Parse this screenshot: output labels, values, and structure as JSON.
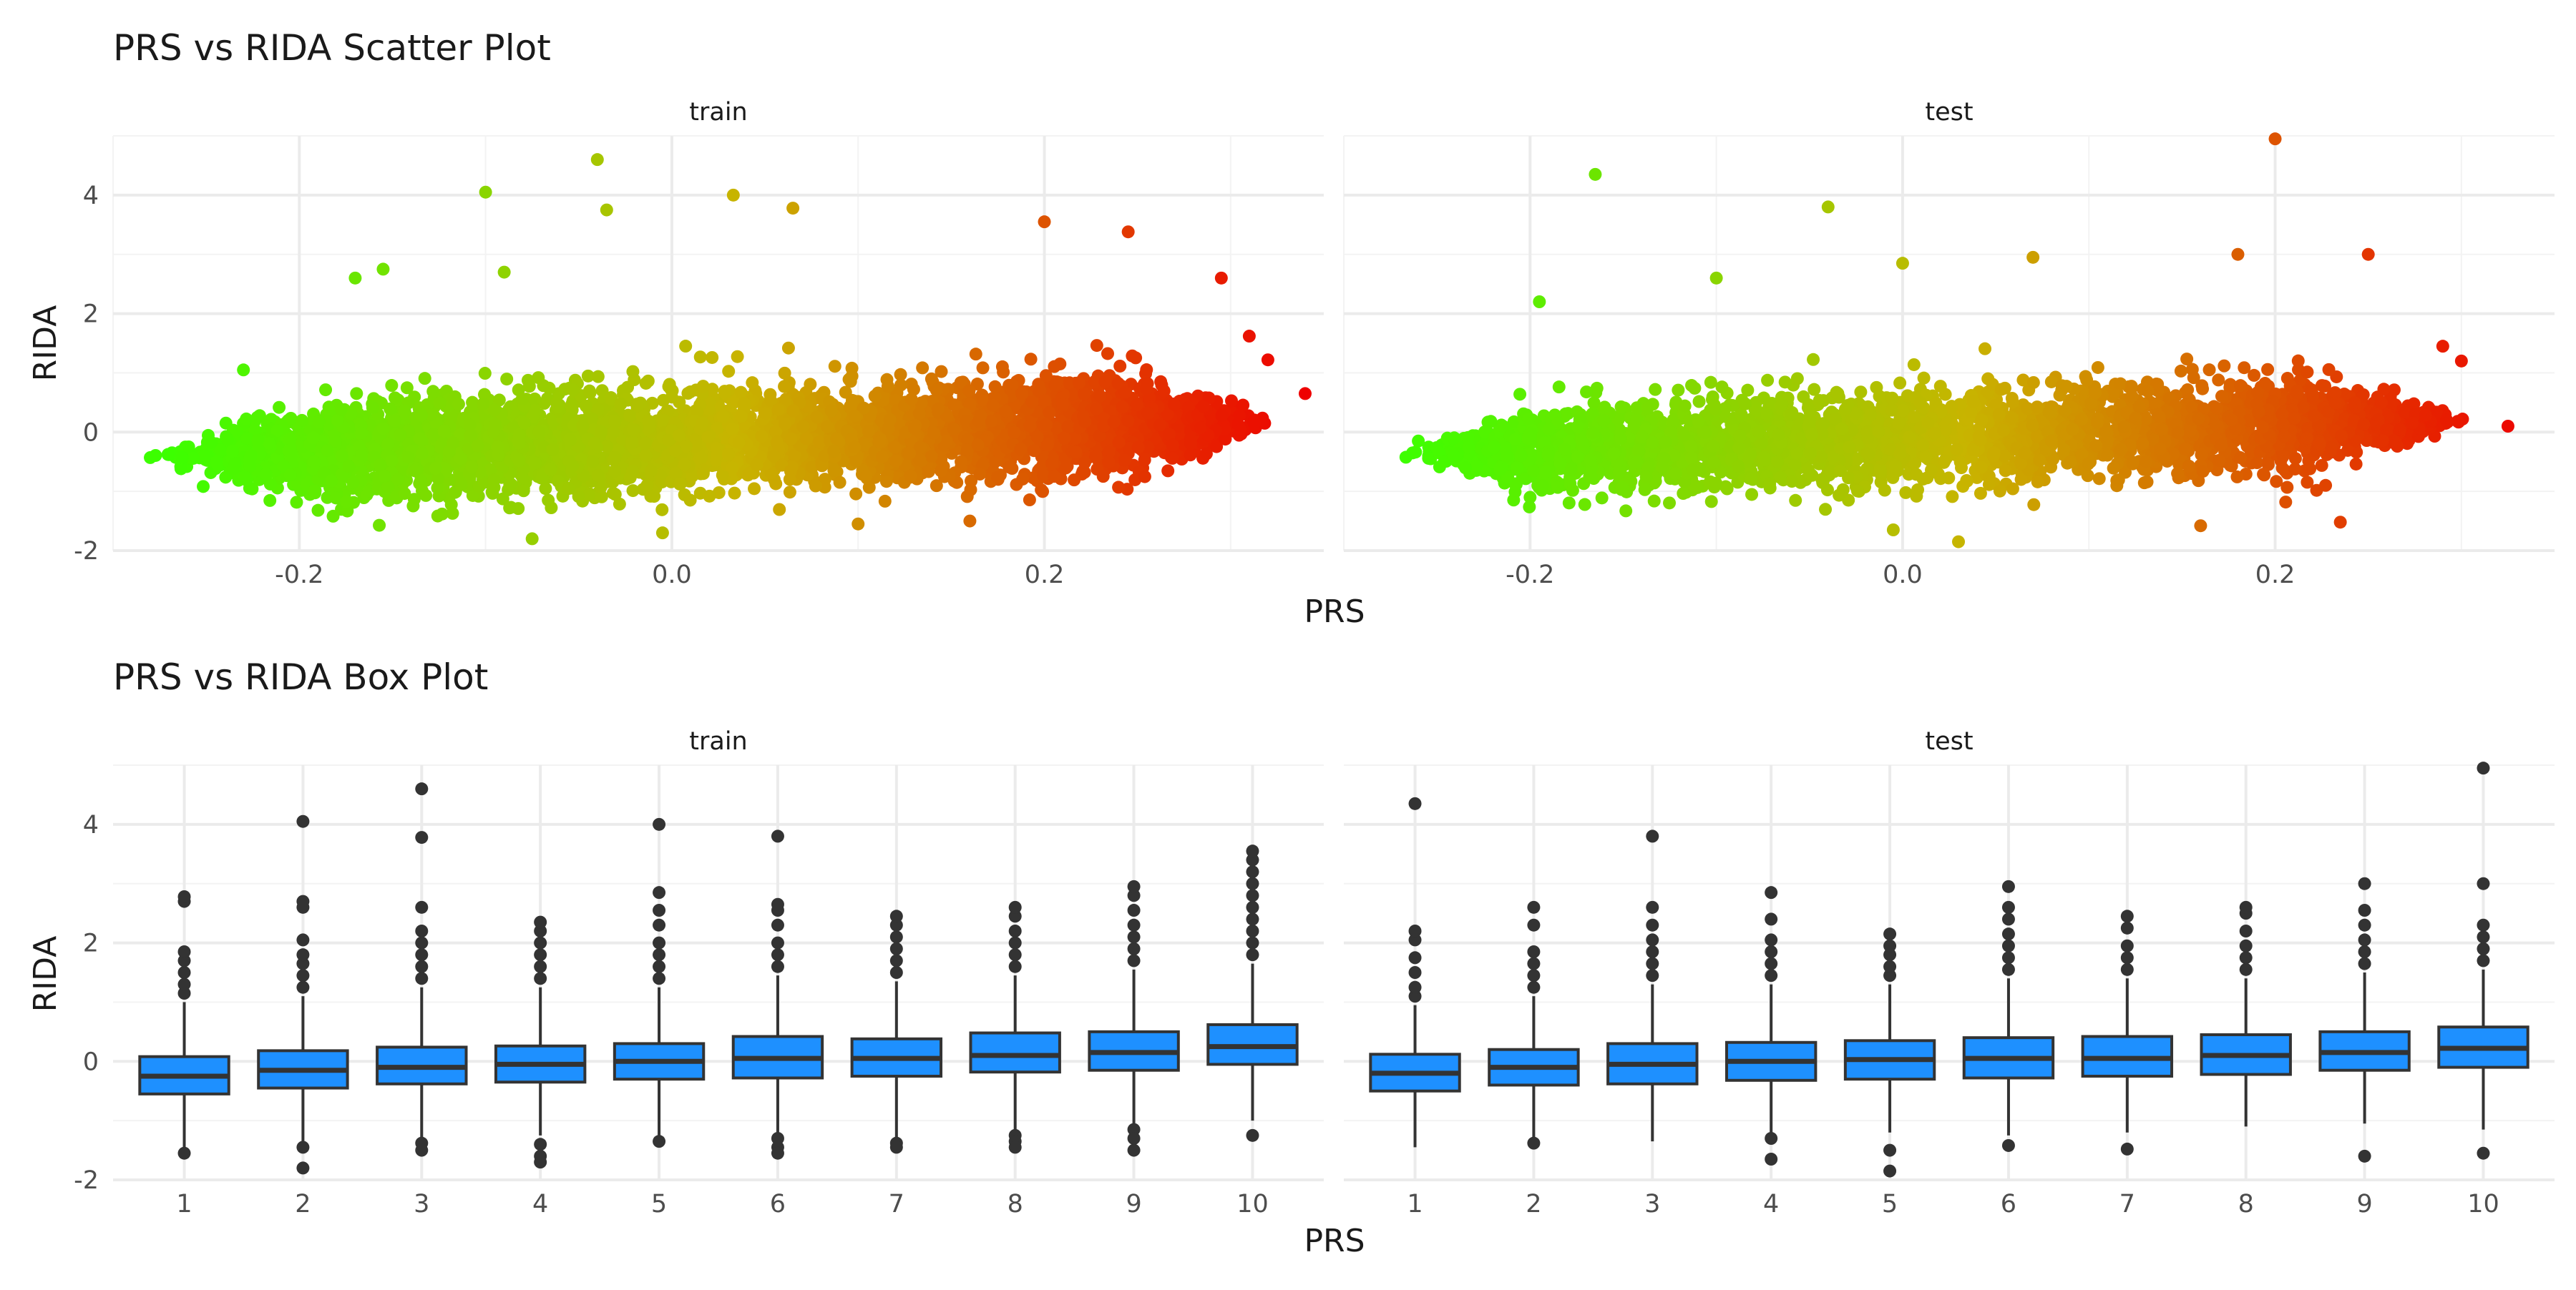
{
  "chart_data": [
    {
      "type": "scatter",
      "title": "PRS vs RIDA Scatter Plot",
      "xlabel": "PRS",
      "ylabel": "RIDA",
      "facets": [
        "train",
        "test"
      ],
      "xlim": [
        -0.3,
        0.35
      ],
      "ylim": [
        -2.0,
        5.0
      ],
      "x_ticks": [
        "-0.2",
        "0.0",
        "0.2"
      ],
      "y_ticks": [
        "-2",
        "0",
        "2",
        "4"
      ],
      "color_scale": {
        "low": "#3cff00",
        "mid": "#c8b400",
        "high": "#ee0000",
        "mapped_to": "PRS"
      },
      "grid": true,
      "series": [
        {
          "name": "train",
          "outliers": [
            {
              "x": -0.27,
              "y": -0.38
            },
            {
              "x": -0.23,
              "y": 1.05
            },
            {
              "x": -0.17,
              "y": 2.6
            },
            {
              "x": -0.155,
              "y": 2.75
            },
            {
              "x": -0.1,
              "y": 4.05
            },
            {
              "x": -0.09,
              "y": 2.7
            },
            {
              "x": -0.04,
              "y": 4.6
            },
            {
              "x": -0.035,
              "y": 3.75
            },
            {
              "x": 0.033,
              "y": 4.0
            },
            {
              "x": 0.065,
              "y": 3.78
            },
            {
              "x": 0.2,
              "y": 3.55
            },
            {
              "x": 0.245,
              "y": 3.38
            },
            {
              "x": 0.295,
              "y": 2.6
            },
            {
              "x": 0.31,
              "y": 1.62
            },
            {
              "x": 0.32,
              "y": 1.22
            },
            {
              "x": 0.34,
              "y": 0.65
            },
            {
              "x": -0.075,
              "y": -1.8
            },
            {
              "x": -0.005,
              "y": -1.7
            },
            {
              "x": 0.1,
              "y": -1.55
            },
            {
              "x": 0.16,
              "y": -1.5
            }
          ],
          "cloud": {
            "x_range": [
              -0.25,
              0.3
            ],
            "y_center_at_min_x": -0.4,
            "y_center_at_max_x": 0.2,
            "y_spread": 0.75
          }
        },
        {
          "name": "test",
          "outliers": [
            {
              "x": -0.26,
              "y": -0.15
            },
            {
              "x": -0.165,
              "y": 4.35
            },
            {
              "x": -0.195,
              "y": 2.2
            },
            {
              "x": -0.1,
              "y": 2.6
            },
            {
              "x": -0.04,
              "y": 3.8
            },
            {
              "x": 0.0,
              "y": 2.85
            },
            {
              "x": 0.07,
              "y": 2.95
            },
            {
              "x": 0.18,
              "y": 3.0
            },
            {
              "x": 0.2,
              "y": 4.95
            },
            {
              "x": 0.25,
              "y": 3.0
            },
            {
              "x": 0.29,
              "y": 1.45
            },
            {
              "x": 0.3,
              "y": 1.2
            },
            {
              "x": 0.325,
              "y": 0.1
            },
            {
              "x": -0.005,
              "y": -1.65
            },
            {
              "x": 0.03,
              "y": -1.85
            },
            {
              "x": 0.16,
              "y": -1.58
            },
            {
              "x": 0.235,
              "y": -1.52
            },
            {
              "x": -0.2,
              "y": -1.1
            }
          ],
          "cloud": {
            "x_range": [
              -0.24,
              0.28
            ],
            "y_center_at_min_x": -0.35,
            "y_center_at_max_x": 0.2,
            "y_spread": 0.7
          }
        }
      ]
    },
    {
      "type": "box",
      "title": "PRS vs RIDA Box Plot",
      "xlabel": "PRS",
      "ylabel": "RIDA",
      "facets": [
        "train",
        "test"
      ],
      "categories": [
        "1",
        "2",
        "3",
        "4",
        "5",
        "6",
        "7",
        "8",
        "9",
        "10"
      ],
      "ylim": [
        -2.0,
        5.0
      ],
      "y_ticks": [
        "-2",
        "0",
        "2",
        "4"
      ],
      "box_color": "#1e90ff",
      "grid": true,
      "series": [
        {
          "name": "train",
          "boxes": [
            {
              "q1": -0.55,
              "median": -0.25,
              "q3": 0.08,
              "lo": -1.5,
              "hi": 1.0,
              "out_high": [
                1.15,
                1.3,
                1.5,
                1.7,
                1.85,
                2.7,
                2.78
              ],
              "out_low": [
                -1.55
              ]
            },
            {
              "q1": -0.45,
              "median": -0.15,
              "q3": 0.18,
              "lo": -1.35,
              "hi": 1.1,
              "out_high": [
                1.25,
                1.45,
                1.65,
                1.8,
                2.05,
                2.6,
                2.7,
                4.05
              ],
              "out_low": [
                -1.45,
                -1.8
              ]
            },
            {
              "q1": -0.38,
              "median": -0.1,
              "q3": 0.24,
              "lo": -1.3,
              "hi": 1.25,
              "out_high": [
                1.4,
                1.6,
                1.8,
                2.0,
                2.2,
                2.6,
                3.78,
                4.6
              ],
              "out_low": [
                -1.38,
                -1.5
              ]
            },
            {
              "q1": -0.35,
              "median": -0.05,
              "q3": 0.26,
              "lo": -1.25,
              "hi": 1.25,
              "out_high": [
                1.4,
                1.6,
                1.8,
                2.0,
                2.2,
                2.35
              ],
              "out_low": [
                -1.4,
                -1.6,
                -1.7
              ]
            },
            {
              "q1": -0.3,
              "median": 0.0,
              "q3": 0.3,
              "lo": -1.25,
              "hi": 1.25,
              "out_high": [
                1.4,
                1.6,
                1.8,
                2.0,
                2.3,
                2.55,
                2.85,
                4.0
              ],
              "out_low": [
                -1.35
              ]
            },
            {
              "q1": -0.28,
              "median": 0.05,
              "q3": 0.42,
              "lo": -1.2,
              "hi": 1.45,
              "out_high": [
                1.6,
                1.8,
                2.0,
                2.3,
                2.55,
                2.65,
                3.8
              ],
              "out_low": [
                -1.3,
                -1.45,
                -1.55
              ]
            },
            {
              "q1": -0.25,
              "median": 0.05,
              "q3": 0.38,
              "lo": -1.3,
              "hi": 1.35,
              "out_high": [
                1.5,
                1.7,
                1.9,
                2.1,
                2.3,
                2.45
              ],
              "out_low": [
                -1.38,
                -1.45
              ]
            },
            {
              "q1": -0.18,
              "median": 0.1,
              "q3": 0.48,
              "lo": -1.15,
              "hi": 1.45,
              "out_high": [
                1.6,
                1.8,
                2.0,
                2.2,
                2.45,
                2.6
              ],
              "out_low": [
                -1.25,
                -1.35,
                -1.45
              ]
            },
            {
              "q1": -0.15,
              "median": 0.15,
              "q3": 0.5,
              "lo": -1.05,
              "hi": 1.55,
              "out_high": [
                1.7,
                1.9,
                2.1,
                2.3,
                2.55,
                2.8,
                2.95
              ],
              "out_low": [
                -1.15,
                -1.3,
                -1.5
              ]
            },
            {
              "q1": -0.05,
              "median": 0.25,
              "q3": 0.62,
              "lo": -1.0,
              "hi": 1.65,
              "out_high": [
                1.8,
                2.0,
                2.2,
                2.4,
                2.6,
                2.8,
                3.0,
                3.2,
                3.4,
                3.55
              ],
              "out_low": [
                -1.25
              ]
            }
          ]
        },
        {
          "name": "test",
          "boxes": [
            {
              "q1": -0.5,
              "median": -0.2,
              "q3": 0.12,
              "lo": -1.45,
              "hi": 0.95,
              "out_high": [
                1.1,
                1.25,
                1.5,
                1.75,
                2.05,
                2.2,
                4.35
              ],
              "out_low": []
            },
            {
              "q1": -0.4,
              "median": -0.1,
              "q3": 0.2,
              "lo": -1.3,
              "hi": 1.1,
              "out_high": [
                1.25,
                1.45,
                1.65,
                1.85,
                2.3,
                2.6
              ],
              "out_low": [
                -1.38
              ]
            },
            {
              "q1": -0.38,
              "median": -0.05,
              "q3": 0.3,
              "lo": -1.35,
              "hi": 1.3,
              "out_high": [
                1.45,
                1.65,
                1.85,
                2.05,
                2.3,
                2.6,
                3.8
              ],
              "out_low": []
            },
            {
              "q1": -0.32,
              "median": 0.0,
              "q3": 0.32,
              "lo": -1.2,
              "hi": 1.3,
              "out_high": [
                1.45,
                1.65,
                1.85,
                2.05,
                2.4,
                2.85
              ],
              "out_low": [
                -1.3,
                -1.65
              ]
            },
            {
              "q1": -0.3,
              "median": 0.03,
              "q3": 0.35,
              "lo": -1.2,
              "hi": 1.3,
              "out_high": [
                1.45,
                1.6,
                1.8,
                1.95,
                2.15
              ],
              "out_low": [
                -1.5,
                -1.85
              ]
            },
            {
              "q1": -0.28,
              "median": 0.05,
              "q3": 0.4,
              "lo": -1.25,
              "hi": 1.4,
              "out_high": [
                1.55,
                1.75,
                1.95,
                2.15,
                2.4,
                2.6,
                2.95
              ],
              "out_low": [
                -1.42
              ]
            },
            {
              "q1": -0.25,
              "median": 0.05,
              "q3": 0.42,
              "lo": -1.2,
              "hi": 1.4,
              "out_high": [
                1.55,
                1.75,
                1.95,
                2.25,
                2.45
              ],
              "out_low": [
                -1.48
              ]
            },
            {
              "q1": -0.22,
              "median": 0.1,
              "q3": 0.45,
              "lo": -1.1,
              "hi": 1.4,
              "out_high": [
                1.55,
                1.75,
                1.95,
                2.2,
                2.5,
                2.6
              ],
              "out_low": []
            },
            {
              "q1": -0.15,
              "median": 0.15,
              "q3": 0.5,
              "lo": -1.05,
              "hi": 1.5,
              "out_high": [
                1.65,
                1.85,
                2.05,
                2.3,
                2.55,
                3.0
              ],
              "out_low": [
                -1.6
              ]
            },
            {
              "q1": -0.1,
              "median": 0.22,
              "q3": 0.58,
              "lo": -1.15,
              "hi": 1.55,
              "out_high": [
                1.7,
                1.9,
                2.1,
                2.3,
                3.0,
                4.95
              ],
              "out_low": [
                -1.55
              ]
            }
          ]
        }
      ]
    }
  ]
}
